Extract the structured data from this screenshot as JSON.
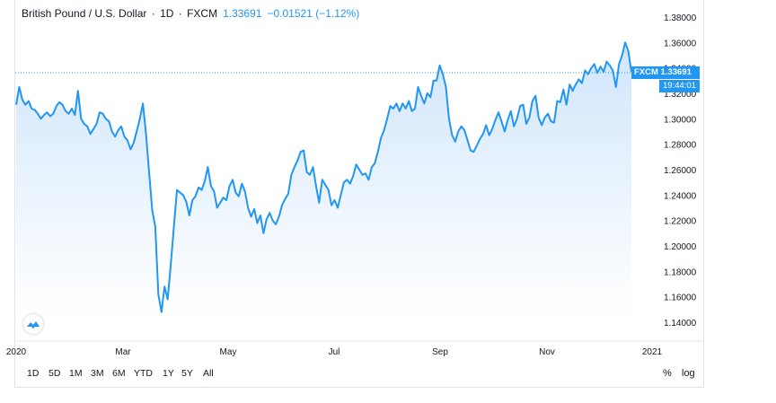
{
  "header": {
    "symbol": "British Pound / U.S. Dollar",
    "interval": "1D",
    "exchange": "FXCM",
    "last": "1.33691",
    "change": "−0.01521 (−1.12%)"
  },
  "price_badge": "FXCM  1.33691",
  "time_badge": "19:44:01",
  "logo_icon": "tradingview-logo-icon",
  "range_buttons": [
    "1D",
    "5D",
    "1M",
    "3M",
    "6M",
    "YTD",
    "1Y",
    "5Y",
    "All"
  ],
  "percent_label": "%",
  "log_label": "log",
  "colors": {
    "line": "#2196f3",
    "fill_top": "#cfe5fb",
    "fill_bottom": "#ffffff",
    "badge": "#2196f3"
  },
  "chart_data": {
    "type": "area",
    "title": "British Pound / U.S. Dollar · 1D · FXCM",
    "xlabel": "",
    "ylabel": "",
    "x_ticks": [
      "2020",
      "Mar",
      "May",
      "Jul",
      "Sep",
      "Nov",
      "2021"
    ],
    "y_ticks": [
      "1.38000",
      "1.36000",
      "1.34000",
      "1.32000",
      "1.30000",
      "1.28000",
      "1.26000",
      "1.24000",
      "1.22000",
      "1.20000",
      "1.18000",
      "1.16000",
      "1.14000"
    ],
    "ylim": [
      1.14,
      1.38
    ],
    "last_value": 1.33691,
    "grid": false,
    "series": [
      {
        "name": "",
        "values": [
          1.311,
          1.325,
          1.315,
          1.311,
          1.314,
          1.308,
          1.307,
          1.304,
          1.3,
          1.303,
          1.305,
          1.302,
          1.304,
          1.31,
          1.313,
          1.311,
          1.306,
          1.304,
          1.308,
          1.303,
          1.322,
          1.3,
          1.296,
          1.294,
          1.288,
          1.292,
          1.296,
          1.305,
          1.304,
          1.3,
          1.298,
          1.29,
          1.286,
          1.291,
          1.294,
          1.286,
          1.283,
          1.276,
          1.281,
          1.29,
          1.3,
          1.312,
          1.288,
          1.258,
          1.228,
          1.215,
          1.162,
          1.148,
          1.168,
          1.158,
          1.185,
          1.215,
          1.244,
          1.242,
          1.24,
          1.235,
          1.224,
          1.236,
          1.239,
          1.246,
          1.244,
          1.251,
          1.262,
          1.247,
          1.243,
          1.23,
          1.234,
          1.238,
          1.236,
          1.247,
          1.252,
          1.242,
          1.239,
          1.249,
          1.243,
          1.23,
          1.223,
          1.229,
          1.218,
          1.224,
          1.21,
          1.221,
          1.226,
          1.22,
          1.217,
          1.223,
          1.232,
          1.237,
          1.241,
          1.256,
          1.262,
          1.267,
          1.274,
          1.275,
          1.258,
          1.256,
          1.262,
          1.247,
          1.234,
          1.252,
          1.248,
          1.244,
          1.232,
          1.236,
          1.23,
          1.24,
          1.25,
          1.252,
          1.249,
          1.255,
          1.264,
          1.26,
          1.256,
          1.257,
          1.252,
          1.262,
          1.265,
          1.274,
          1.285,
          1.291,
          1.3,
          1.31,
          1.308,
          1.312,
          1.306,
          1.312,
          1.308,
          1.314,
          1.306,
          1.308,
          1.325,
          1.318,
          1.312,
          1.32,
          1.317,
          1.33,
          1.33,
          1.342,
          1.335,
          1.325,
          1.3,
          1.287,
          1.282,
          1.29,
          1.294,
          1.291,
          1.283,
          1.275,
          1.274,
          1.279,
          1.284,
          1.288,
          1.295,
          1.287,
          1.292,
          1.299,
          1.305,
          1.298,
          1.29,
          1.299,
          1.306,
          1.294,
          1.3,
          1.31,
          1.311,
          1.296,
          1.301,
          1.314,
          1.318,
          1.301,
          1.295,
          1.301,
          1.304,
          1.298,
          1.297,
          1.314,
          1.313,
          1.323,
          1.311,
          1.327,
          1.322,
          1.327,
          1.331,
          1.328,
          1.338,
          1.335,
          1.34,
          1.343,
          1.336,
          1.341,
          1.337,
          1.345,
          1.342,
          1.338,
          1.325,
          1.343,
          1.35,
          1.36,
          1.353,
          1.337
        ]
      }
    ]
  }
}
